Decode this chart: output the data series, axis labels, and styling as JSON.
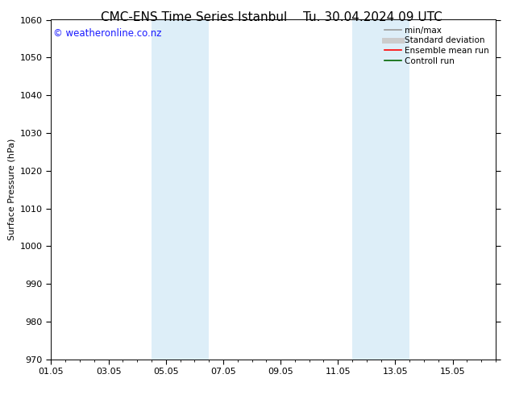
{
  "title": "CMC-ENS Time Series Istanbul",
  "title_right": "Tu. 30.04.2024 09 UTC",
  "ylabel": "Surface Pressure (hPa)",
  "ylim": [
    970,
    1060
  ],
  "yticks": [
    970,
    980,
    990,
    1000,
    1010,
    1020,
    1030,
    1040,
    1050,
    1060
  ],
  "xtick_labels": [
    "01.05",
    "03.05",
    "05.05",
    "07.05",
    "09.05",
    "11.05",
    "13.05",
    "15.05"
  ],
  "xtick_positions": [
    0,
    2,
    4,
    6,
    8,
    10,
    12,
    14
  ],
  "xlim": [
    0,
    15.5
  ],
  "shaded_regions": [
    {
      "x_start": 3.5,
      "x_end": 5.5,
      "color": "#ddeef8"
    },
    {
      "x_start": 10.5,
      "x_end": 12.5,
      "color": "#ddeef8"
    }
  ],
  "watermark_text": "© weatheronline.co.nz",
  "watermark_color": "#1a1aff",
  "watermark_fontsize": 8.5,
  "legend_entries": [
    {
      "label": "min/max",
      "color": "#999999",
      "lw": 1.2
    },
    {
      "label": "Standard deviation",
      "color": "#cccccc",
      "lw": 5
    },
    {
      "label": "Ensemble mean run",
      "color": "#ff0000",
      "lw": 1.2
    },
    {
      "label": "Controll run",
      "color": "#006600",
      "lw": 1.2
    }
  ],
  "bg_color": "#ffffff",
  "title_fontsize": 11,
  "ylabel_fontsize": 8,
  "tick_fontsize": 8,
  "legend_fontsize": 7.5
}
